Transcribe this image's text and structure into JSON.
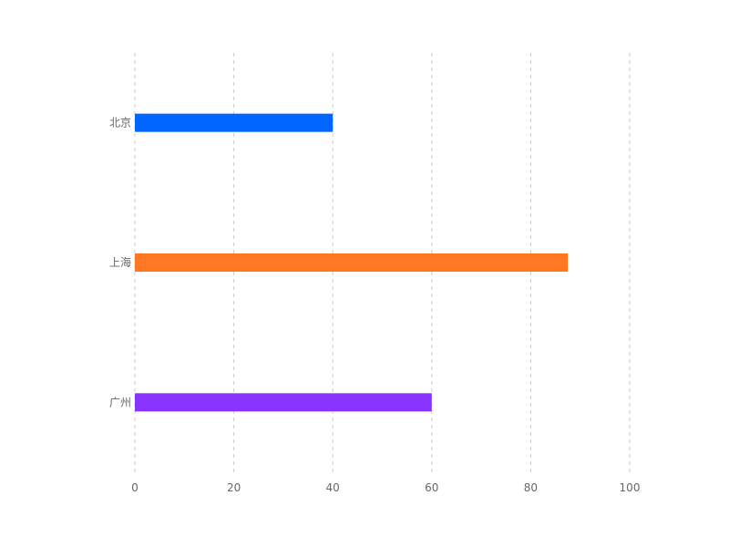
{
  "chart_data": {
    "type": "bar",
    "orientation": "horizontal",
    "categories": [
      "北京",
      "上海",
      "广州"
    ],
    "values": [
      40,
      87.5,
      60
    ],
    "x_ticks": [
      "0",
      "20",
      "40",
      "60",
      "80",
      "100"
    ],
    "xlim": [
      0,
      100
    ],
    "grid": true,
    "colors": [
      "#0066ff",
      "#ff7722",
      "#8833ff"
    ]
  }
}
